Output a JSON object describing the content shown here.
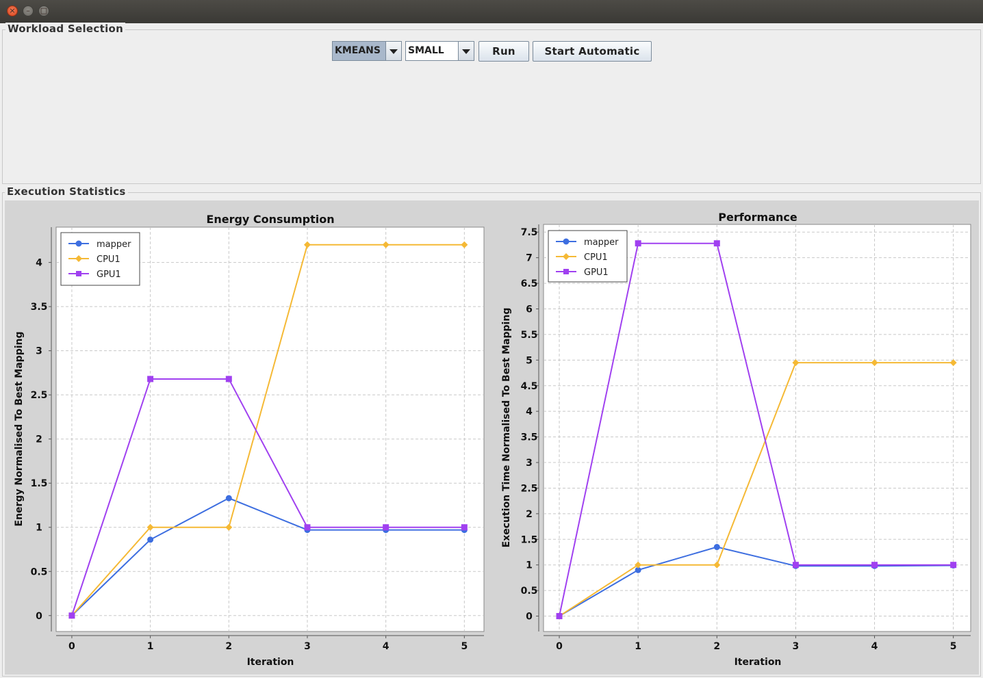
{
  "window": {
    "controls": [
      "close",
      "minimize",
      "maximize"
    ]
  },
  "workload": {
    "title": "Workload Selection",
    "workload_select": "KMEANS",
    "size_select": "SMALL",
    "run_label": "Run",
    "auto_label": "Start Automatic"
  },
  "stats": {
    "title": "Execution Statistics"
  },
  "legend": {
    "mapper": "mapper",
    "cpu": "CPU1",
    "gpu": "GPU1"
  },
  "colors": {
    "mapper": "#3d6ee0",
    "cpu": "#f5b935",
    "gpu": "#a040f0"
  },
  "chart_data": [
    {
      "type": "line",
      "title": "Energy Consumption",
      "xlabel": "Iteration",
      "ylabel": "Energy Normalised To Best Mapping",
      "x": [
        0,
        1,
        2,
        3,
        4,
        5
      ],
      "xlim": [
        -0.2,
        5.25
      ],
      "ylim": [
        -0.18,
        4.4
      ],
      "yticks": [
        0,
        0.5,
        1,
        1.5,
        2,
        2.5,
        3,
        3.5,
        4
      ],
      "ytick_labels": [
        "0",
        "0.5",
        "1",
        "1.5",
        "2",
        "2.5",
        "3",
        "3.5",
        "4"
      ],
      "grid": true,
      "legend_position": "top-left",
      "series": [
        {
          "name": "mapper",
          "marker": "circle",
          "values": [
            0,
            0.86,
            1.33,
            0.97,
            0.97,
            0.97
          ]
        },
        {
          "name": "CPU1",
          "marker": "diamond",
          "values": [
            0,
            1.0,
            1.0,
            4.2,
            4.2,
            4.2
          ]
        },
        {
          "name": "GPU1",
          "marker": "square",
          "values": [
            0,
            2.68,
            2.68,
            1.0,
            1.0,
            1.0
          ]
        }
      ]
    },
    {
      "type": "line",
      "title": "Performance",
      "xlabel": "Iteration",
      "ylabel": "Execution Time Normalised To Best Mapping",
      "x": [
        0,
        1,
        2,
        3,
        4,
        5
      ],
      "xlim": [
        -0.2,
        5.22
      ],
      "ylim": [
        -0.3,
        7.65
      ],
      "yticks": [
        0,
        0.5,
        1,
        1.5,
        2,
        2.5,
        3,
        3.5,
        4,
        4.5,
        5,
        5.5,
        6,
        6.5,
        7,
        7.5
      ],
      "ytick_labels": [
        "0",
        "0.5",
        "1",
        "1.5",
        "2",
        "2.5",
        "3",
        "3.5",
        "4",
        "4.5",
        "5",
        "5.5",
        "6",
        "6.5",
        "7",
        "7.5"
      ],
      "grid": true,
      "legend_position": "top-left",
      "series": [
        {
          "name": "mapper",
          "marker": "circle",
          "values": [
            0,
            0.9,
            1.35,
            0.98,
            0.98,
            0.99
          ]
        },
        {
          "name": "CPU1",
          "marker": "diamond",
          "values": [
            0,
            1.0,
            1.0,
            4.95,
            4.95,
            4.95
          ]
        },
        {
          "name": "GPU1",
          "marker": "square",
          "values": [
            0,
            7.28,
            7.28,
            1.0,
            1.0,
            1.0
          ]
        }
      ]
    }
  ]
}
